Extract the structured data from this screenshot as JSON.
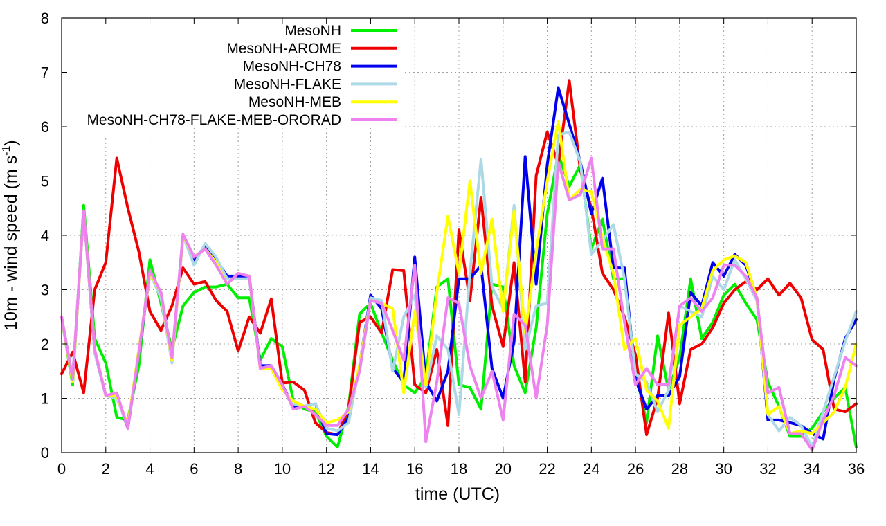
{
  "chart_data": {
    "type": "line",
    "title": "",
    "xlabel": "time (UTC)",
    "ylabel_main": "10m - wind speed  (m s",
    "ylabel_sup": "-1",
    "ylabel_end": ")",
    "xlim": [
      0,
      36
    ],
    "ylim": [
      0,
      8
    ],
    "xticks": [
      0,
      2,
      4,
      6,
      8,
      10,
      12,
      14,
      16,
      18,
      20,
      22,
      24,
      26,
      28,
      30,
      32,
      34,
      36
    ],
    "yticks": [
      0,
      1,
      2,
      3,
      4,
      5,
      6,
      7,
      8
    ],
    "grid": true,
    "legend_position": "top-left",
    "x": [
      0,
      0.5,
      1,
      1.5,
      2,
      2.5,
      3,
      3.5,
      4,
      4.5,
      5,
      5.5,
      6,
      6.5,
      7,
      7.5,
      8,
      8.5,
      9,
      9.5,
      10,
      10.5,
      11,
      11.5,
      12,
      12.5,
      13,
      13.5,
      14,
      14.5,
      15,
      15.5,
      16,
      16.5,
      17,
      17.5,
      18,
      18.5,
      19,
      19.5,
      20,
      20.5,
      21,
      21.5,
      22,
      22.5,
      23,
      23.5,
      24,
      24.5,
      25,
      25.5,
      26,
      26.5,
      27,
      27.5,
      28,
      28.5,
      29,
      29.5,
      30,
      30.5,
      31,
      31.5,
      32,
      32.5,
      33,
      33.5,
      34,
      34.5,
      35,
      35.5,
      36
    ],
    "series": [
      {
        "name": "MesoNH",
        "color": "#00ee00",
        "values": [
          2.5,
          1.25,
          4.55,
          2.1,
          1.65,
          0.65,
          0.6,
          1.6,
          3.55,
          2.75,
          1.9,
          2.7,
          2.95,
          3.05,
          3.05,
          3.1,
          2.85,
          2.85,
          1.7,
          2.1,
          1.95,
          0.95,
          0.8,
          0.75,
          0.3,
          0.1,
          0.85,
          2.55,
          2.75,
          2.2,
          1.7,
          1.25,
          1.1,
          1.4,
          3.05,
          3.2,
          1.25,
          1.2,
          0.8,
          3.1,
          3.05,
          1.6,
          1.1,
          2.3,
          4.4,
          5.5,
          4.9,
          5.3,
          3.75,
          4.3,
          3.2,
          3.2,
          1.5,
          0.55,
          2.15,
          1.15,
          1.75,
          3.2,
          2.1,
          2.4,
          2.9,
          3.1,
          2.75,
          2.45,
          1.3,
          0.85,
          0.3,
          0.3,
          0.45,
          0.75,
          1.0,
          1.2,
          0.1
        ]
      },
      {
        "name": "MesoNH-AROME",
        "color": "#ee0000",
        "values": [
          1.45,
          1.85,
          1.1,
          3.0,
          3.5,
          5.42,
          4.5,
          3.7,
          2.6,
          2.25,
          2.7,
          3.4,
          3.1,
          3.15,
          2.8,
          2.6,
          1.87,
          2.5,
          2.2,
          2.83,
          1.28,
          1.3,
          1.15,
          0.55,
          0.37,
          0.33,
          0.8,
          2.4,
          2.5,
          2.2,
          3.37,
          3.35,
          1.25,
          1.1,
          1.9,
          0.5,
          4.1,
          2.8,
          4.7,
          2.7,
          1.95,
          3.5,
          1.3,
          5.1,
          5.9,
          5.3,
          6.85,
          5.2,
          4.5,
          3.3,
          3.0,
          2.5,
          1.8,
          0.33,
          1.0,
          2.57,
          0.9,
          1.9,
          2.0,
          2.3,
          2.75,
          3.0,
          3.15,
          3.0,
          3.2,
          2.9,
          3.12,
          2.85,
          2.08,
          1.9,
          0.8,
          0.75,
          0.9
        ]
      },
      {
        "name": "MesoNH-CH78",
        "color": "#0000ee",
        "values": [
          2.5,
          1.35,
          4.45,
          1.85,
          1.05,
          1.05,
          0.45,
          1.85,
          3.3,
          2.95,
          1.7,
          4.0,
          3.55,
          3.8,
          3.55,
          3.25,
          3.25,
          3.25,
          1.6,
          1.6,
          1.25,
          0.85,
          0.85,
          0.9,
          0.35,
          0.33,
          0.65,
          1.6,
          2.9,
          2.65,
          1.55,
          1.3,
          3.6,
          1.3,
          0.95,
          1.5,
          3.2,
          3.2,
          3.45,
          1.55,
          1.0,
          2.05,
          5.45,
          3.1,
          5.3,
          6.72,
          6.05,
          5.35,
          4.4,
          5.05,
          3.4,
          3.4,
          1.35,
          0.8,
          1.05,
          1.05,
          1.4,
          2.95,
          2.7,
          3.5,
          3.25,
          3.65,
          3.45,
          2.85,
          0.6,
          0.6,
          0.55,
          0.5,
          0.35,
          0.25,
          1.35,
          2.1,
          2.45
        ]
      },
      {
        "name": "MesoNH-FLAKE",
        "color": "#add8e6",
        "values": [
          2.5,
          1.4,
          4.45,
          1.85,
          1.05,
          1.0,
          0.48,
          1.9,
          3.3,
          2.85,
          1.65,
          4.0,
          3.45,
          3.85,
          3.6,
          3.2,
          3.2,
          3.2,
          1.55,
          1.55,
          1.2,
          0.9,
          0.85,
          0.9,
          0.45,
          0.4,
          0.55,
          1.6,
          2.85,
          2.8,
          1.5,
          2.5,
          2.9,
          1.2,
          2.15,
          1.9,
          0.7,
          3.3,
          5.4,
          3.05,
          2.65,
          4.55,
          1.9,
          2.7,
          2.75,
          5.85,
          5.9,
          5.35,
          3.65,
          3.9,
          4.2,
          3.2,
          1.45,
          1.3,
          0.75,
          1.15,
          2.7,
          2.6,
          2.5,
          3.25,
          3.0,
          3.55,
          3.2,
          2.8,
          0.7,
          0.4,
          0.65,
          0.5,
          0.1,
          0.75,
          1.4,
          2.05,
          2.6
        ]
      },
      {
        "name": "MesoNH-MEB",
        "color": "#ffff00",
        "values": [
          2.5,
          1.3,
          4.45,
          1.9,
          1.05,
          1.05,
          0.5,
          1.9,
          3.3,
          2.95,
          1.7,
          4.0,
          3.6,
          3.75,
          3.5,
          3.1,
          3.3,
          3.25,
          1.55,
          1.55,
          1.15,
          0.95,
          0.85,
          0.8,
          0.55,
          0.6,
          0.75,
          1.6,
          2.8,
          2.75,
          2.65,
          1.1,
          2.6,
          1.25,
          2.95,
          4.35,
          3.3,
          5.0,
          3.3,
          4.3,
          2.6,
          4.45,
          2.2,
          3.7,
          5.0,
          6.1,
          4.65,
          4.85,
          4.8,
          3.95,
          3.3,
          1.9,
          2.1,
          1.15,
          0.95,
          0.45,
          2.35,
          2.5,
          2.65,
          3.35,
          3.55,
          3.62,
          3.5,
          2.85,
          0.7,
          0.85,
          0.35,
          0.4,
          0.35,
          0.55,
          0.75,
          1.2,
          2.0
        ]
      },
      {
        "name": "MesoNH-CH78-FLAKE-MEB-ORORAD",
        "color": "#ee82ee",
        "values": [
          2.5,
          1.35,
          4.45,
          1.9,
          1.05,
          1.1,
          0.45,
          1.85,
          3.35,
          2.95,
          1.75,
          4.02,
          3.6,
          3.75,
          3.45,
          3.1,
          3.3,
          3.25,
          1.55,
          1.6,
          1.25,
          0.8,
          0.85,
          0.7,
          0.5,
          0.5,
          0.8,
          1.5,
          2.8,
          2.75,
          2.25,
          1.7,
          3.45,
          0.2,
          1.3,
          2.85,
          2.75,
          1.6,
          1.0,
          1.5,
          0.6,
          2.55,
          2.35,
          1.0,
          2.35,
          5.35,
          4.65,
          4.75,
          5.42,
          3.75,
          3.75,
          2.4,
          1.25,
          1.55,
          1.25,
          1.25,
          2.7,
          2.85,
          2.6,
          2.85,
          3.45,
          3.45,
          3.25,
          2.85,
          1.1,
          1.2,
          0.35,
          0.35,
          0.05,
          0.6,
          1.05,
          1.75,
          1.6
        ]
      }
    ]
  }
}
